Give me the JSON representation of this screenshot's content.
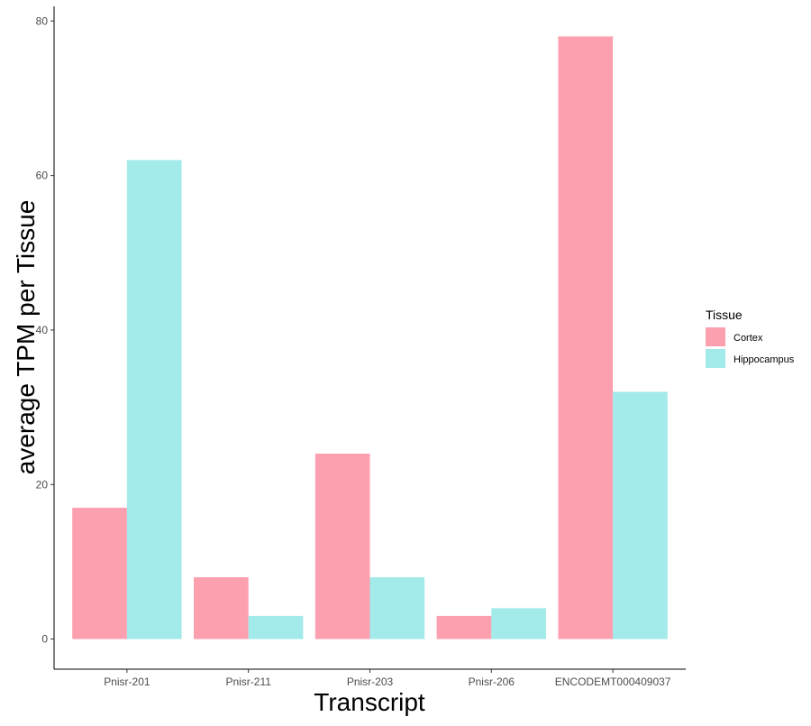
{
  "chart_data": {
    "type": "bar",
    "categories": [
      "Pnisr-201",
      "Pnisr-211",
      "Pnisr-203",
      "Pnisr-206",
      "ENCODEMT000409037"
    ],
    "series": [
      {
        "name": "Cortex",
        "color": "#FC9FAF",
        "values": [
          17,
          8,
          24,
          3,
          78
        ]
      },
      {
        "name": "Hippocampus",
        "color": "#A3EAEA",
        "values": [
          62,
          3,
          8,
          4,
          32
        ]
      }
    ],
    "yticks": [
      0,
      20,
      40,
      60,
      80
    ],
    "ylim": [
      -3.9,
      81.9
    ],
    "xlabel": "Transcript",
    "ylabel": "average TPM per Tissue",
    "legend": {
      "title": "Tissue",
      "position": "right"
    },
    "grid": false
  }
}
